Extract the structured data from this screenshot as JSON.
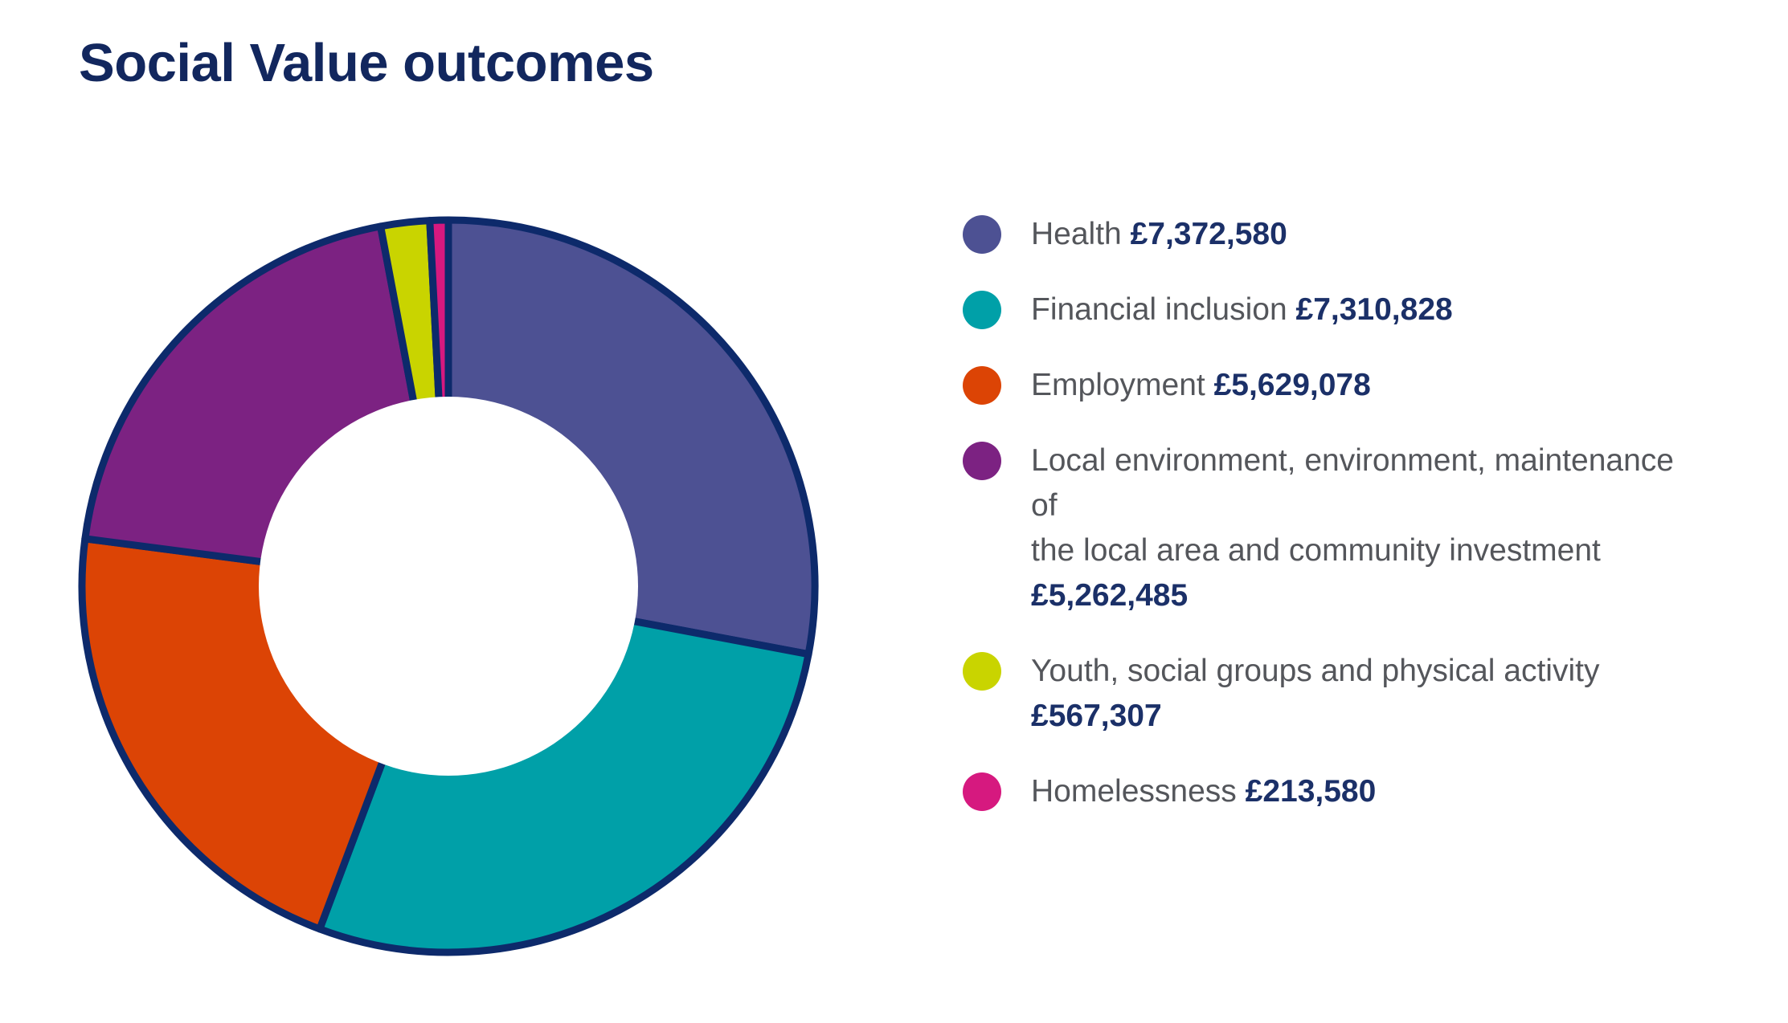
{
  "header": {
    "title": "Social Value outcomes"
  },
  "colors": {
    "title_navy": "#12275e",
    "border_navy": "#0d2a6b",
    "label_gray": "#54565b",
    "value_navy": "#1b3068",
    "background": "#ffffff"
  },
  "chart_data": {
    "type": "pie",
    "subtype": "donut",
    "title": "Social Value outcomes",
    "start_angle_deg": 0,
    "direction": "clockwise",
    "inner_radius_ratio": 0.51,
    "outline_color": "#0d2a6b",
    "legend_position": "right",
    "currency": "£",
    "segments": [
      {
        "label": "Health",
        "label_lines": [
          "Health"
        ],
        "value": 7372580,
        "display_value": "£7,372,580",
        "color": "#4d5193",
        "name": "health"
      },
      {
        "label": "Financial inclusion",
        "label_lines": [
          "Financial inclusion"
        ],
        "value": 7310828,
        "display_value": "£7,310,828",
        "color": "#00a0a8",
        "name": "financial-inclusion"
      },
      {
        "label": "Employment",
        "label_lines": [
          "Employment"
        ],
        "value": 5629078,
        "display_value": "£5,629,078",
        "color": "#dc4405",
        "name": "employment"
      },
      {
        "label": "Local environment, environment, maintenance of the local area and community investment",
        "label_lines": [
          "Local environment, environment, maintenance of",
          "the local area and community investment"
        ],
        "value": 5262485,
        "display_value": "£5,262,485",
        "color": "#7c2282",
        "name": "local-environment"
      },
      {
        "label": "Youth, social groups and physical activity",
        "label_lines": [
          "Youth, social groups and physical activity"
        ],
        "value": 567307,
        "display_value": "£567,307",
        "color": "#c9d400",
        "name": "youth-social-groups"
      },
      {
        "label": "Homelessness",
        "label_lines": [
          "Homelessness"
        ],
        "value": 213580,
        "display_value": "£213,580",
        "color": "#d6197f",
        "name": "homelessness"
      }
    ]
  }
}
